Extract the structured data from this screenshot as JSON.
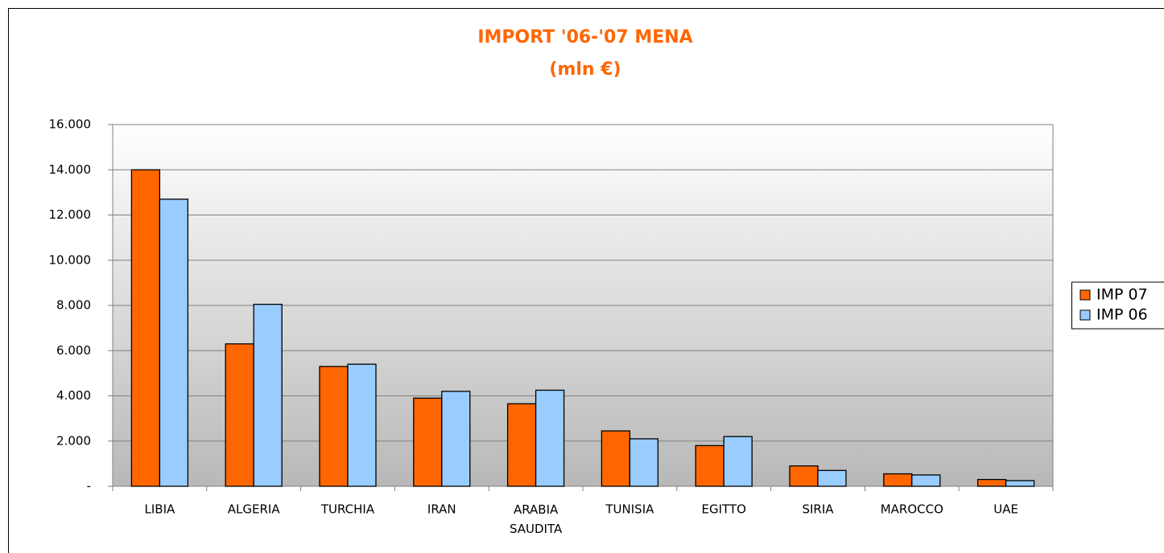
{
  "chart_data": {
    "type": "bar",
    "title": "IMPORT '06-'07 MENA",
    "subtitle": "(mln €)",
    "categories": [
      "LIBIA",
      "ALGERIA",
      "TURCHIA",
      "IRAN",
      "ARABIA SAUDITA",
      "TUNISIA",
      "EGITTO",
      "SIRIA",
      "MAROCCO",
      "UAE"
    ],
    "series": [
      {
        "name": "IMP 07",
        "color": "#ff6600",
        "values": [
          14000,
          6300,
          5300,
          3900,
          3650,
          2450,
          1800,
          900,
          550,
          300
        ]
      },
      {
        "name": "IMP 06",
        "color": "#99ccff",
        "values": [
          12700,
          8050,
          5400,
          4200,
          4250,
          2100,
          2200,
          700,
          500,
          250
        ]
      }
    ],
    "ylim": [
      0,
      16000
    ],
    "yticks": [
      {
        "value": 0,
        "label": "-"
      },
      {
        "value": 2000,
        "label": "2.000"
      },
      {
        "value": 4000,
        "label": "4.000"
      },
      {
        "value": 6000,
        "label": "6.000"
      },
      {
        "value": 8000,
        "label": "8.000"
      },
      {
        "value": 10000,
        "label": "10.000"
      },
      {
        "value": 12000,
        "label": "12.000"
      },
      {
        "value": 14000,
        "label": "14.000"
      },
      {
        "value": 16000,
        "label": "16.000"
      }
    ],
    "grid": true,
    "legend": "right"
  }
}
